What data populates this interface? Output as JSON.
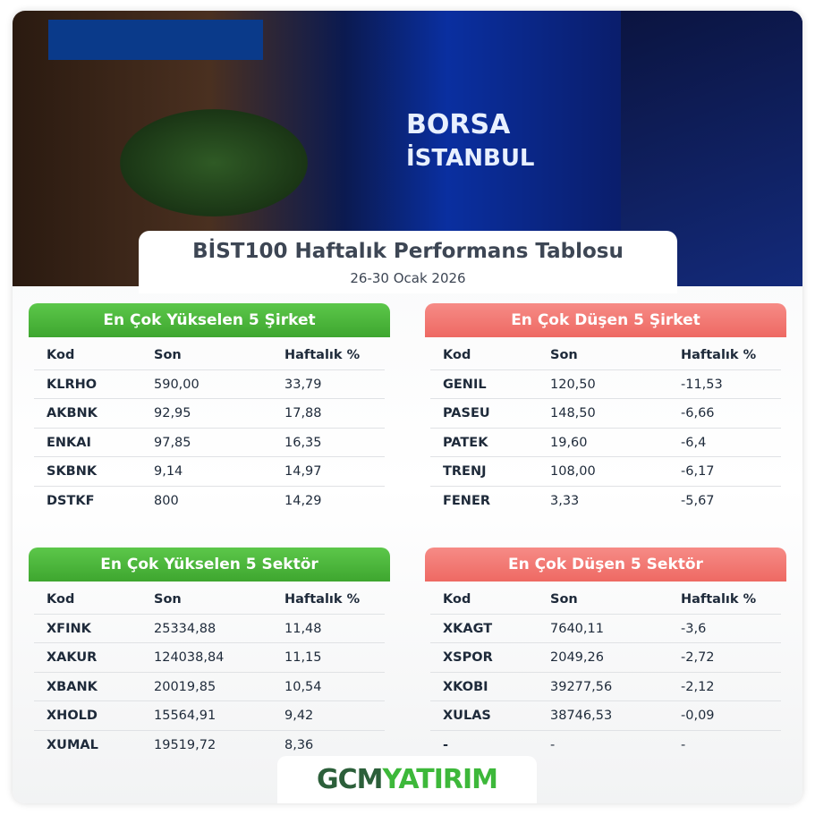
{
  "photo": {
    "labels": [
      "BORSA",
      "İSTANBUL"
    ]
  },
  "header": {
    "title": "BİST100 Haftalık Performans Tablosu",
    "subtitle": "26-30 Ocak 2026"
  },
  "tables": [
    {
      "title": "En Çok Yükselen 5 Şirket",
      "columns": [
        "Kod",
        "Son",
        "Haftalık %"
      ],
      "rows": [
        [
          "KLRHO",
          "590,00",
          "33,79"
        ],
        [
          "AKBNK",
          "92,95",
          "17,88"
        ],
        [
          "ENKAI",
          "97,85",
          "16,35"
        ],
        [
          "SKBNK",
          "9,14",
          "14,97"
        ],
        [
          "DSTKF",
          "800",
          "14,29"
        ]
      ]
    },
    {
      "title": "En Çok Düşen 5 Şirket",
      "columns": [
        "Kod",
        "Son",
        "Haftalık %"
      ],
      "rows": [
        [
          "GENIL",
          "120,50",
          "-11,53"
        ],
        [
          "PASEU",
          "148,50",
          "-6,66"
        ],
        [
          "PATEK",
          "19,60",
          "-6,4"
        ],
        [
          "TRENJ",
          "108,00",
          "-6,17"
        ],
        [
          "FENER",
          "3,33",
          "-5,67"
        ]
      ]
    },
    {
      "title": "En Çok Yükselen 5 Sektör",
      "columns": [
        "Kod",
        "Son",
        "Haftalık %"
      ],
      "rows": [
        [
          "XFINK",
          "25334,88",
          "11,48"
        ],
        [
          "XAKUR",
          "124038,84",
          "11,15"
        ],
        [
          "XBANK",
          "20019,85",
          "10,54"
        ],
        [
          "XHOLD",
          "15564,91",
          "9,42"
        ],
        [
          "XUMAL",
          "19519,72",
          "8,36"
        ]
      ]
    },
    {
      "title": "En Çok Düşen 5 Sektör",
      "columns": [
        "Kod",
        "Son",
        "Haftalık %"
      ],
      "rows": [
        [
          "XKAGT",
          "7640,11",
          "-3,6"
        ],
        [
          "XSPOR",
          "2049,26",
          "-2,72"
        ],
        [
          "XKOBI",
          "39277,56",
          "-2,12"
        ],
        [
          "XULAS",
          "38746,53",
          "-0,09"
        ],
        [
          "-",
          "-",
          "-"
        ]
      ]
    }
  ],
  "logo": {
    "part1": "GCM",
    "part2": "YATIRIM"
  }
}
